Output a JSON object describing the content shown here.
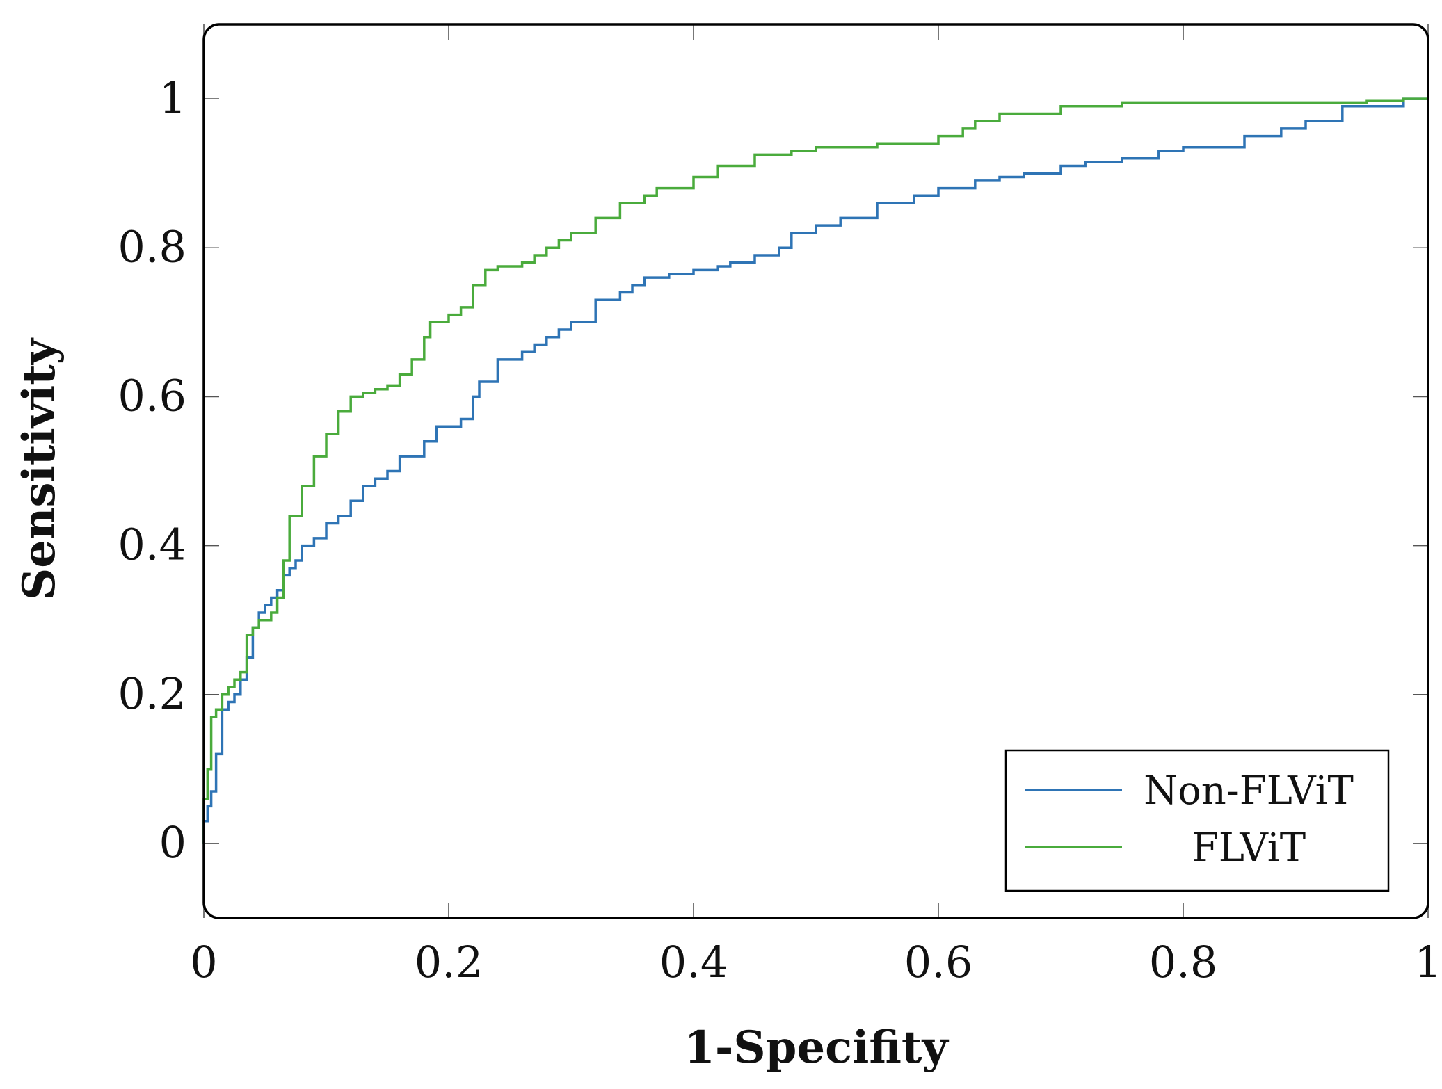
{
  "chart_data": {
    "type": "line",
    "title": "",
    "xlabel": "1-Specifity",
    "ylabel": "Sensitivity",
    "xlim": [
      0,
      1
    ],
    "ylim": [
      -0.1,
      1.1
    ],
    "xticks": [
      0,
      0.2,
      0.4,
      0.6,
      0.8,
      1
    ],
    "xtick_labels": [
      "0",
      "0.2",
      "0.4",
      "0.6",
      "0.8",
      "1"
    ],
    "yticks": [
      0,
      0.2,
      0.4,
      0.6,
      0.8,
      1
    ],
    "ytick_labels": [
      "0",
      "0.2",
      "0.4",
      "0.6",
      "0.8",
      "1"
    ],
    "grid": false,
    "legend_position": "bottom-right",
    "series": [
      {
        "name": "Non-FLViT",
        "color": "#2e74b5",
        "x": [
          0,
          0.003,
          0.006,
          0.01,
          0.015,
          0.02,
          0.025,
          0.03,
          0.035,
          0.04,
          0.045,
          0.05,
          0.055,
          0.06,
          0.065,
          0.07,
          0.075,
          0.08,
          0.09,
          0.1,
          0.11,
          0.12,
          0.13,
          0.14,
          0.15,
          0.16,
          0.18,
          0.19,
          0.2,
          0.21,
          0.22,
          0.225,
          0.24,
          0.26,
          0.27,
          0.28,
          0.29,
          0.3,
          0.32,
          0.34,
          0.35,
          0.36,
          0.37,
          0.38,
          0.4,
          0.42,
          0.43,
          0.45,
          0.47,
          0.48,
          0.5,
          0.52,
          0.55,
          0.58,
          0.6,
          0.63,
          0.65,
          0.67,
          0.7,
          0.72,
          0.75,
          0.78,
          0.8,
          0.85,
          0.88,
          0.9,
          0.93,
          0.96,
          0.98,
          0.99,
          1.0
        ],
        "y": [
          0,
          0.03,
          0.05,
          0.07,
          0.12,
          0.18,
          0.19,
          0.2,
          0.22,
          0.25,
          0.29,
          0.31,
          0.32,
          0.33,
          0.34,
          0.36,
          0.37,
          0.38,
          0.4,
          0.41,
          0.43,
          0.44,
          0.46,
          0.48,
          0.49,
          0.5,
          0.52,
          0.54,
          0.56,
          0.56,
          0.57,
          0.6,
          0.62,
          0.65,
          0.66,
          0.67,
          0.68,
          0.69,
          0.7,
          0.73,
          0.74,
          0.75,
          0.76,
          0.76,
          0.765,
          0.77,
          0.775,
          0.78,
          0.79,
          0.8,
          0.82,
          0.83,
          0.84,
          0.86,
          0.87,
          0.88,
          0.89,
          0.895,
          0.9,
          0.91,
          0.915,
          0.92,
          0.93,
          0.935,
          0.95,
          0.96,
          0.97,
          0.99,
          0.99,
          1.0,
          1.0
        ]
      },
      {
        "name": "FLViT",
        "color": "#4aab3c",
        "x": [
          0,
          0.003,
          0.006,
          0.01,
          0.015,
          0.02,
          0.025,
          0.03,
          0.035,
          0.04,
          0.045,
          0.05,
          0.055,
          0.06,
          0.065,
          0.07,
          0.08,
          0.09,
          0.1,
          0.11,
          0.12,
          0.13,
          0.14,
          0.15,
          0.16,
          0.17,
          0.18,
          0.185,
          0.2,
          0.21,
          0.22,
          0.23,
          0.24,
          0.26,
          0.27,
          0.28,
          0.29,
          0.3,
          0.32,
          0.34,
          0.36,
          0.37,
          0.4,
          0.42,
          0.45,
          0.48,
          0.5,
          0.55,
          0.6,
          0.62,
          0.63,
          0.65,
          0.7,
          0.72,
          0.75,
          0.8,
          0.85,
          0.9,
          0.95,
          0.98,
          1.0
        ],
        "y": [
          0,
          0.06,
          0.1,
          0.17,
          0.18,
          0.2,
          0.21,
          0.22,
          0.23,
          0.28,
          0.29,
          0.3,
          0.3,
          0.31,
          0.33,
          0.38,
          0.44,
          0.48,
          0.52,
          0.55,
          0.58,
          0.6,
          0.605,
          0.61,
          0.615,
          0.63,
          0.65,
          0.68,
          0.7,
          0.71,
          0.72,
          0.75,
          0.77,
          0.775,
          0.78,
          0.79,
          0.8,
          0.81,
          0.82,
          0.84,
          0.86,
          0.87,
          0.88,
          0.895,
          0.91,
          0.925,
          0.93,
          0.935,
          0.94,
          0.95,
          0.96,
          0.97,
          0.98,
          0.99,
          0.99,
          0.995,
          0.995,
          0.995,
          0.995,
          0.997,
          1.0
        ]
      }
    ]
  }
}
